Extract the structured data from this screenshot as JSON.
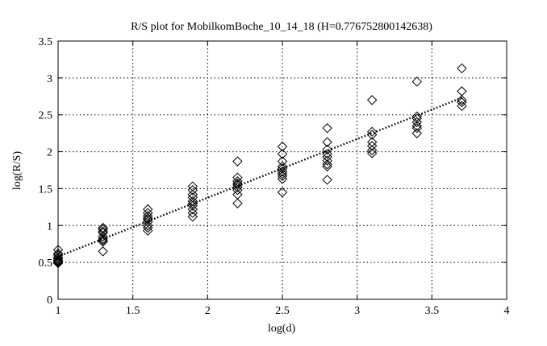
{
  "chart_data": {
    "type": "scatter",
    "title": "R/S plot for MobilkomBoche_10_14_18 (H=0.776752800142638)",
    "xlabel": "log(d)",
    "ylabel": "log(R/S)",
    "xlim": [
      1,
      4
    ],
    "ylim": [
      0,
      3.5
    ],
    "xticks": [
      1,
      1.5,
      2,
      2.5,
      3,
      3.5,
      4
    ],
    "yticks": [
      0,
      0.5,
      1,
      1.5,
      2,
      2.5,
      3,
      3.5
    ],
    "xtick_labels": [
      "1",
      "1.5",
      "2",
      "2.5",
      "3",
      "3.5",
      "4"
    ],
    "ytick_labels": [
      "0",
      "0.5",
      "1",
      "1.5",
      "2",
      "2.5",
      "3",
      "3.5"
    ],
    "grid": true,
    "legend": false,
    "marker": "diamond",
    "series": [
      {
        "x": [
          1.0,
          1.0,
          1.0,
          1.0,
          1.0,
          1.0,
          1.0,
          1.0,
          1.0,
          1.0,
          1.3,
          1.3,
          1.3,
          1.3,
          1.3,
          1.3,
          1.3,
          1.3,
          1.3,
          1.6,
          1.6,
          1.6,
          1.6,
          1.6,
          1.6,
          1.6,
          1.6,
          1.6,
          1.9,
          1.9,
          1.9,
          1.9,
          1.9,
          1.9,
          1.9,
          1.9,
          1.9,
          1.9,
          2.2,
          2.2,
          2.2,
          2.2,
          2.2,
          2.2,
          2.2,
          2.2,
          2.2,
          2.5,
          2.5,
          2.5,
          2.5,
          2.5,
          2.5,
          2.5,
          2.5,
          2.5,
          2.5,
          2.8,
          2.8,
          2.8,
          2.8,
          2.8,
          2.8,
          2.8,
          2.8,
          2.8,
          3.1,
          3.1,
          3.1,
          3.1,
          3.1,
          3.1,
          3.1,
          3.4,
          3.4,
          3.4,
          3.4,
          3.4,
          3.4,
          3.4,
          3.7,
          3.7,
          3.7,
          3.7,
          3.7
        ],
        "y": [
          0.67,
          0.6,
          0.57,
          0.55,
          0.53,
          0.52,
          0.51,
          0.5,
          0.49,
          0.62,
          0.97,
          0.95,
          0.92,
          0.9,
          0.85,
          0.82,
          0.8,
          0.78,
          0.65,
          1.22,
          1.17,
          1.13,
          1.1,
          1.08,
          1.05,
          1.0,
          0.97,
          0.93,
          1.53,
          1.48,
          1.42,
          1.38,
          1.33,
          1.3,
          1.27,
          1.22,
          1.17,
          1.12,
          1.87,
          1.65,
          1.6,
          1.57,
          1.55,
          1.52,
          1.48,
          1.42,
          1.3,
          2.07,
          1.97,
          1.87,
          1.8,
          1.77,
          1.73,
          1.7,
          1.67,
          1.63,
          1.45,
          2.32,
          2.13,
          2.03,
          1.97,
          1.93,
          1.88,
          1.83,
          1.8,
          1.62,
          2.7,
          2.27,
          2.23,
          2.13,
          2.08,
          2.02,
          1.98,
          2.95,
          2.48,
          2.45,
          2.4,
          2.35,
          2.32,
          2.25,
          3.13,
          2.82,
          2.7,
          2.67,
          2.62
        ]
      }
    ],
    "fit_line": {
      "style": "dotted",
      "x": [
        1.0,
        3.7
      ],
      "y": [
        0.58,
        2.73
      ]
    }
  }
}
